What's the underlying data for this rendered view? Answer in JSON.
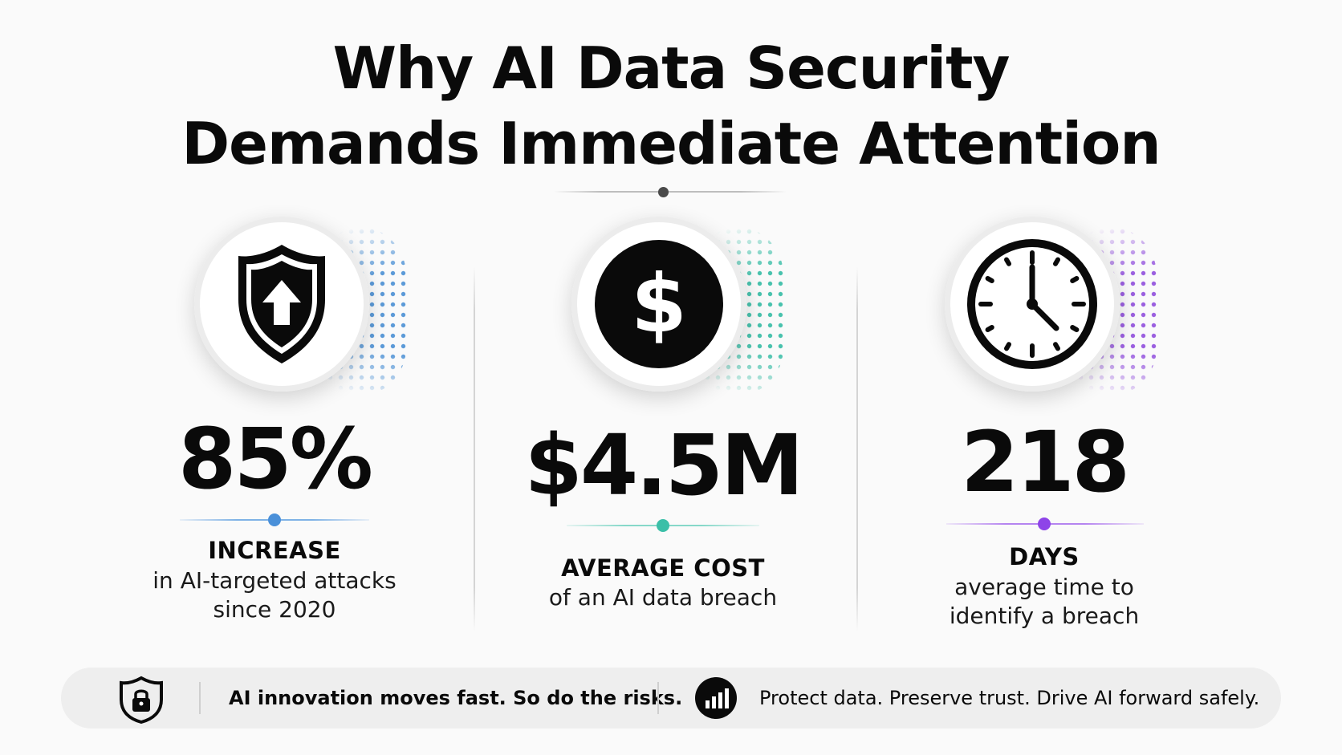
{
  "title": {
    "line1": "Why AI Data Security",
    "line2": "Demands Immediate Attention"
  },
  "stats": [
    {
      "icon": "shield-arrow-up-icon",
      "value": "85%",
      "label": "INCREASE",
      "description_line1": "in AI-targeted attacks",
      "description_line2": "since 2020",
      "accent_color": "#4a90d9"
    },
    {
      "icon": "dollar-coin-icon",
      "value": "$4.5M",
      "label": "AVERAGE COST",
      "description_line1": "of an AI data breach",
      "accent_color": "#3bbfa8"
    },
    {
      "icon": "clock-icon",
      "value": "218",
      "label": "DAYS",
      "description_line1": "average time to",
      "description_line2": "identify a breach",
      "accent_color": "#8e44e8"
    }
  ],
  "footer": {
    "left_icon": "shield-lock-icon",
    "left_text": "AI innovation moves fast. So do the risks.",
    "right_icon": "bar-chart-icon",
    "right_text": "Protect data. Preserve trust. Drive AI forward safely."
  }
}
